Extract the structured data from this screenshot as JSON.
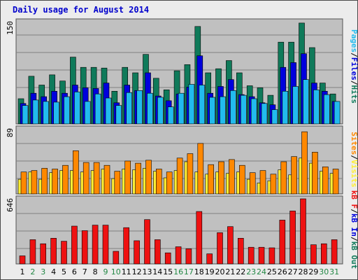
{
  "title": "Daily usage for August 2014",
  "colors": {
    "background": "#c0c0c0",
    "grid": "#808080",
    "hits": "#0f7a5a",
    "files": "#0000dd",
    "pages": "#22bbee",
    "visits": "#ffee33",
    "sites": "#ff8800",
    "kbf": "#ee1111",
    "weekday_label": "#000000",
    "weekend_label": "#228844"
  },
  "chart_data": [
    {
      "type": "bar",
      "panel": "hits-files-pages",
      "categories": [
        "1",
        "2",
        "3",
        "4",
        "5",
        "6",
        "7",
        "8",
        "9",
        "10",
        "11",
        "12",
        "13",
        "14",
        "15",
        "16",
        "17",
        "18",
        "19",
        "20",
        "21",
        "22",
        "23",
        "24",
        "25",
        "26",
        "27",
        "28",
        "29",
        "30",
        "31"
      ],
      "weekend_days": [
        "2",
        "3",
        "9",
        "10",
        "16",
        "17",
        "23",
        "24",
        "30",
        "31"
      ],
      "ymax_label": "150",
      "ylim": [
        0,
        150
      ],
      "series": [
        {
          "name": "Hits",
          "values": [
            37,
            70,
            57,
            72,
            63,
            98,
            83,
            83,
            82,
            48,
            83,
            75,
            102,
            67,
            50,
            78,
            87,
            143,
            75,
            81,
            93,
            75,
            56,
            53,
            42,
            120,
            120,
            148,
            112,
            60,
            44
          ]
        },
        {
          "name": "Files",
          "values": [
            30,
            45,
            40,
            48,
            45,
            57,
            53,
            52,
            60,
            31,
            57,
            49,
            75,
            41,
            34,
            44,
            54,
            100,
            45,
            55,
            65,
            43,
            40,
            31,
            28,
            83,
            90,
            103,
            60,
            48,
            33
          ]
        },
        {
          "name": "Pages",
          "values": [
            27,
            35,
            33,
            32,
            40,
            47,
            33,
            44,
            38,
            27,
            46,
            49,
            45,
            39,
            25,
            45,
            58,
            57,
            39,
            40,
            49,
            42,
            37,
            30,
            21,
            48,
            55,
            65,
            50,
            43,
            33
          ]
        }
      ]
    },
    {
      "type": "bar",
      "panel": "visits-sites",
      "categories": [
        "1",
        "2",
        "3",
        "4",
        "5",
        "6",
        "7",
        "8",
        "9",
        "10",
        "11",
        "12",
        "13",
        "14",
        "15",
        "16",
        "17",
        "18",
        "19",
        "20",
        "21",
        "22",
        "23",
        "24",
        "25",
        "26",
        "27",
        "28",
        "29",
        "30",
        "31"
      ],
      "weekend_days": [
        "2",
        "3",
        "9",
        "10",
        "16",
        "17",
        "23",
        "24",
        "30",
        "31"
      ],
      "ymax_label": "89",
      "ylim": [
        0,
        89
      ],
      "series": [
        {
          "name": "Visits",
          "values": [
            20,
            30,
            20,
            29,
            32,
            32,
            30,
            32,
            34,
            21,
            34,
            33,
            35,
            31,
            22,
            32,
            44,
            30,
            27,
            30,
            28,
            30,
            20,
            15,
            18,
            33,
            26,
            49,
            42,
            31,
            28
          ]
        },
        {
          "name": "Sites",
          "values": [
            30,
            32,
            35,
            34,
            39,
            59,
            43,
            43,
            39,
            31,
            45,
            42,
            46,
            34,
            30,
            49,
            55,
            69,
            40,
            44,
            47,
            39,
            29,
            32,
            27,
            44,
            51,
            85,
            57,
            37,
            34
          ]
        }
      ]
    },
    {
      "type": "bar",
      "panel": "kbf",
      "categories": [
        "1",
        "2",
        "3",
        "4",
        "5",
        "6",
        "7",
        "8",
        "9",
        "10",
        "11",
        "12",
        "13",
        "14",
        "15",
        "16",
        "17",
        "18",
        "19",
        "20",
        "21",
        "22",
        "23",
        "24",
        "25",
        "26",
        "27",
        "28",
        "29",
        "30",
        "31"
      ],
      "weekend_days": [
        "2",
        "3",
        "9",
        "10",
        "16",
        "17",
        "23",
        "24",
        "30",
        "31"
      ],
      "ymax_label": "646",
      "ylim": [
        0,
        646
      ],
      "series": [
        {
          "name": "KB F",
          "values": [
            80,
            240,
            200,
            255,
            225,
            375,
            330,
            385,
            385,
            125,
            360,
            230,
            440,
            240,
            110,
            170,
            150,
            520,
            100,
            310,
            370,
            255,
            165,
            165,
            160,
            435,
            525,
            646,
            190,
            200,
            240
          ]
        }
      ]
    }
  ],
  "right_labels": {
    "panel1": [
      {
        "text": "Pages",
        "color": "#22bbee"
      },
      {
        "text": "/",
        "color": "#000000"
      },
      {
        "text": "Files",
        "color": "#0000dd"
      },
      {
        "text": "/",
        "color": "#000000"
      },
      {
        "text": "Hits",
        "color": "#0f7a5a"
      }
    ],
    "panel2": [
      {
        "text": "Sites",
        "color": "#ff8800"
      },
      {
        "text": "/",
        "color": "#000000"
      },
      {
        "text": "Visits",
        "color": "#ffee33"
      }
    ],
    "panel3": [
      {
        "text": "kB F",
        "color": "#ee1111"
      },
      {
        "text": "/",
        "color": "#000000"
      },
      {
        "text": "kB In",
        "color": "#0000dd"
      },
      {
        "text": "/",
        "color": "#000000"
      },
      {
        "text": "kB Out",
        "color": "#0f7a5a"
      }
    ]
  }
}
